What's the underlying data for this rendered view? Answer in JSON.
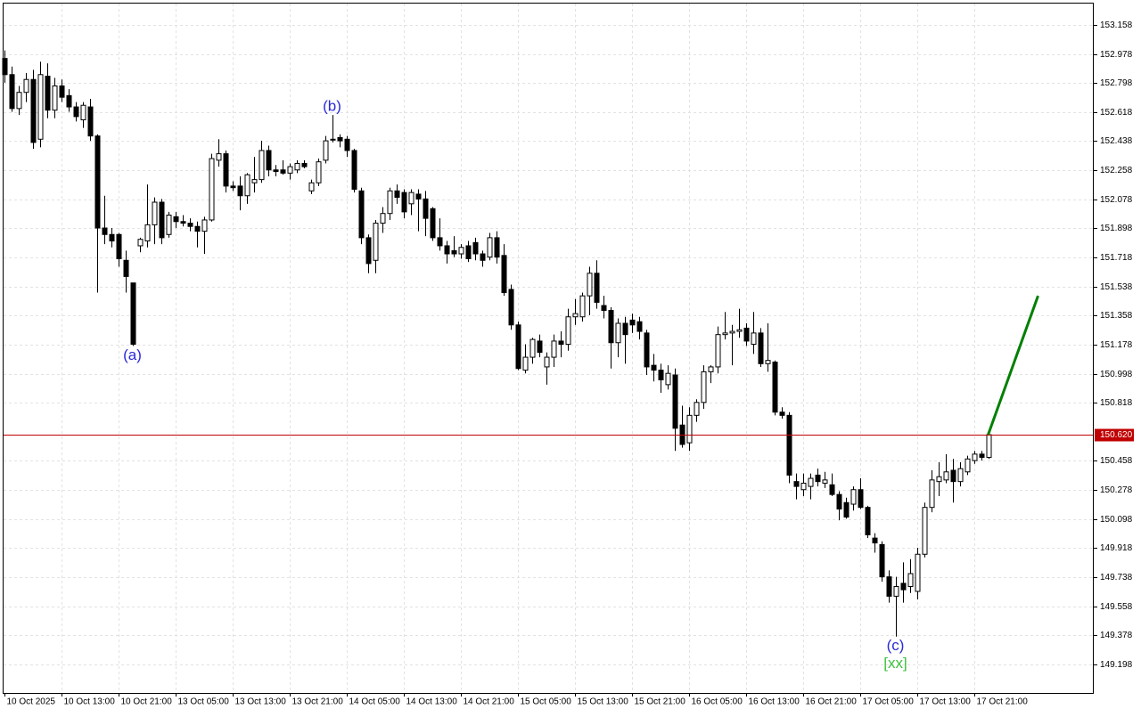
{
  "chart_data": {
    "type": "candlestick",
    "categories": [
      "10 Oct 2025",
      null,
      null,
      null,
      null,
      null,
      null,
      null,
      "10 Oct 13:00",
      null,
      null,
      null,
      null,
      null,
      null,
      null,
      "10 Oct 21:00",
      null,
      null,
      null,
      null,
      null,
      null,
      null,
      "13 Oct 05:00",
      null,
      null,
      null,
      null,
      null,
      null,
      null,
      "13 Oct 13:00",
      null,
      null,
      null,
      null,
      null,
      null,
      null,
      "13 Oct 21:00",
      null,
      null,
      null,
      null,
      null,
      null,
      null,
      "14 Oct 05:00",
      null,
      null,
      null,
      null,
      null,
      null,
      null,
      "14 Oct 13:00",
      null,
      null,
      null,
      null,
      null,
      null,
      null,
      "14 Oct 21:00",
      null,
      null,
      null,
      null,
      null,
      null,
      null,
      "15 Oct 05:00",
      null,
      null,
      null,
      null,
      null,
      null,
      null,
      "15 Oct 13:00",
      null,
      null,
      null,
      null,
      null,
      null,
      null,
      "15 Oct 21:00",
      null,
      null,
      null,
      null,
      null,
      null,
      null,
      "16 Oct 05:00",
      null,
      null,
      null,
      null,
      null,
      null,
      null,
      "16 Oct 13:00",
      null,
      null,
      null,
      null,
      null,
      null,
      null,
      "16 Oct 21:00",
      null,
      null,
      null,
      null,
      null,
      null,
      null,
      "17 Oct 05:00",
      null,
      null,
      null,
      null,
      null,
      null,
      null,
      "17 Oct 13:00",
      null,
      null,
      null,
      null,
      null,
      null,
      null,
      "17 Oct 21:00",
      null,
      null
    ],
    "open": [
      152.95,
      152.85,
      152.64,
      152.74,
      152.82,
      152.45,
      152.84,
      152.63,
      152.78,
      152.72,
      152.65,
      152.57,
      152.65,
      152.47,
      151.9,
      151.86,
      151.86,
      151.7,
      151.56,
      151.79,
      151.82,
      151.92,
      152.06,
      151.86,
      151.97,
      151.94,
      151.93,
      151.91,
      151.88,
      151.95,
      152.32,
      152.36,
      152.16,
      152.16,
      152.1,
      152.18,
      152.2,
      152.38,
      152.26,
      152.26,
      152.24,
      152.26,
      152.3,
      152.13,
      152.18,
      152.32,
      152.45,
      152.46,
      152.45,
      152.38,
      152.13,
      151.84,
      151.7,
      151.93,
      151.99,
      152.13,
      152.12,
      152.05,
      152.11,
      152.08,
      152.02,
      151.84,
      151.79,
      151.76,
      151.74,
      151.79,
      151.81,
      151.74,
      151.72,
      151.84,
      151.73,
      151.52,
      151.3,
      151.02,
      151.1,
      151.2,
      151.04,
      151.1,
      151.2,
      151.18,
      151.35,
      151.35,
      151.48,
      151.62,
      151.42,
      151.39,
      151.19,
      151.31,
      151.33,
      151.32,
      151.25,
      151.05,
      151.02,
      150.93,
      150.99,
      150.68,
      150.57,
      150.74,
      150.82,
      151.01,
      151.04,
      151.24,
      151.25,
      151.26,
      151.28,
      151.18,
      151.25,
      151.06,
      151.07,
      150.76,
      150.74,
      150.33,
      150.28,
      150.3,
      150.37,
      150.32,
      150.31,
      150.25,
      150.2,
      150.19,
      150.28,
      150.17,
      149.98,
      149.94,
      149.74,
      149.62,
      149.7,
      149.68,
      149.65,
      149.88,
      150.17,
      150.33,
      150.34,
      150.4,
      150.33,
      150.39,
      150.46,
      150.5,
      150.48
    ],
    "high": [
      153.0,
      152.9,
      152.78,
      152.86,
      152.88,
      152.93,
      152.92,
      152.83,
      152.82,
      152.76,
      152.68,
      152.68,
      152.7,
      152.48,
      152.1,
      151.9,
      151.87,
      151.76,
      151.56,
      151.84,
      152.17,
      152.09,
      152.08,
      152.0,
      152.0,
      151.98,
      151.96,
      151.94,
      151.97,
      152.36,
      152.45,
      152.38,
      152.19,
      152.22,
      152.24,
      152.34,
      152.44,
      152.41,
      152.29,
      152.32,
      152.3,
      152.32,
      152.32,
      152.2,
      152.33,
      152.47,
      152.6,
      152.48,
      152.47,
      152.39,
      152.15,
      151.86,
      151.95,
      152.03,
      152.15,
      152.17,
      152.14,
      152.14,
      152.14,
      152.13,
      152.03,
      151.96,
      151.82,
      151.85,
      151.8,
      151.82,
      151.84,
      151.76,
      151.87,
      151.88,
      151.8,
      151.55,
      151.32,
      151.18,
      151.22,
      151.24,
      151.13,
      151.24,
      151.26,
      151.4,
      151.46,
      151.5,
      151.66,
      151.7,
      151.48,
      151.41,
      151.34,
      151.35,
      151.37,
      151.35,
      151.27,
      151.12,
      151.06,
      151.05,
      151.03,
      150.8,
      150.79,
      150.84,
      151.05,
      151.05,
      151.29,
      151.38,
      151.3,
      151.4,
      151.31,
      151.38,
      151.28,
      151.31,
      151.08,
      150.79,
      150.76,
      150.38,
      150.38,
      150.38,
      150.41,
      150.39,
      150.38,
      150.27,
      150.23,
      150.3,
      150.35,
      150.18,
      150.01,
      149.96,
      149.78,
      149.74,
      149.83,
      149.85,
      149.92,
      150.2,
      150.4,
      150.45,
      150.5,
      150.47,
      150.45,
      150.49,
      150.52,
      150.52,
      150.65
    ],
    "low": [
      152.8,
      152.62,
      152.6,
      152.68,
      152.39,
      152.4,
      152.58,
      152.58,
      152.68,
      152.62,
      152.56,
      152.52,
      152.44,
      151.5,
      151.8,
      151.78,
      151.66,
      151.5,
      151.17,
      151.75,
      151.78,
      151.8,
      151.8,
      151.84,
      151.9,
      151.91,
      151.88,
      151.78,
      151.74,
      151.94,
      152.28,
      152.12,
      152.13,
      152.01,
      152.05,
      152.12,
      152.18,
      152.22,
      152.22,
      152.23,
      152.2,
      152.24,
      152.27,
      152.11,
      152.16,
      152.3,
      152.43,
      152.4,
      152.34,
      152.12,
      151.8,
      151.62,
      151.62,
      151.87,
      151.95,
      152.05,
      151.96,
      151.98,
      151.88,
      151.85,
      151.82,
      151.76,
      151.68,
      151.72,
      151.71,
      151.69,
      151.7,
      151.66,
      151.7,
      151.68,
      151.48,
      151.27,
      151.02,
      151.0,
      151.06,
      151.1,
      150.93,
      151.04,
      151.1,
      151.14,
      151.3,
      151.32,
      151.36,
      151.4,
      151.34,
      151.03,
      151.1,
      151.06,
      151.25,
      151.21,
      150.99,
      150.95,
      150.88,
      150.9,
      150.52,
      150.54,
      150.52,
      150.7,
      150.78,
      150.94,
      151.0,
      151.21,
      151.05,
      151.22,
      151.17,
      151.12,
      151.04,
      151.01,
      150.74,
      150.72,
      150.32,
      150.22,
      150.24,
      150.22,
      150.3,
      150.29,
      150.24,
      150.09,
      150.1,
      150.15,
      150.16,
      149.98,
      149.89,
      149.71,
      149.58,
      149.37,
      149.58,
      149.64,
      149.6,
      149.86,
      150.14,
      150.24,
      150.32,
      150.2,
      150.3,
      150.37,
      150.44,
      150.46,
      150.47
    ],
    "close": [
      152.85,
      152.64,
      152.74,
      152.82,
      152.43,
      152.85,
      152.63,
      152.78,
      152.71,
      152.65,
      152.59,
      152.66,
      152.47,
      151.9,
      151.86,
      151.82,
      151.71,
      151.6,
      151.18,
      151.83,
      151.92,
      152.06,
      151.84,
      151.98,
      151.94,
      151.93,
      151.91,
      151.88,
      151.95,
      152.33,
      152.36,
      152.16,
      152.15,
      152.1,
      152.23,
      152.2,
      152.38,
      152.26,
      152.25,
      152.24,
      152.28,
      152.3,
      152.28,
      152.18,
      152.31,
      152.44,
      152.45,
      152.44,
      152.38,
      152.14,
      151.84,
      151.68,
      151.93,
      151.99,
      152.13,
      152.09,
      152.0,
      152.12,
      152.08,
      151.96,
      151.84,
      151.79,
      151.74,
      151.74,
      151.78,
      151.71,
      151.74,
      151.7,
      151.84,
      151.72,
      151.5,
      151.3,
      151.03,
      151.1,
      151.21,
      151.13,
      151.1,
      151.2,
      151.18,
      151.35,
      151.37,
      151.48,
      151.62,
      151.44,
      151.39,
      151.19,
      151.31,
      151.24,
      151.3,
      151.26,
      151.04,
      151.02,
      150.96,
      151.0,
      150.66,
      150.56,
      150.74,
      150.82,
      151.01,
      151.04,
      151.24,
      151.25,
      151.26,
      151.27,
      151.2,
      151.25,
      151.06,
      151.08,
      150.76,
      150.74,
      150.37,
      150.3,
      150.32,
      150.35,
      150.33,
      150.34,
      150.25,
      150.16,
      150.11,
      150.28,
      150.17,
      150.0,
      149.95,
      149.74,
      149.62,
      149.68,
      149.66,
      149.76,
      149.88,
      150.17,
      150.34,
      150.36,
      150.39,
      150.33,
      150.41,
      150.47,
      150.5,
      150.48,
      150.62
    ],
    "up_color": "#ffffff",
    "down_color": "#000000",
    "ylim": [
      149.021,
      153.29
    ],
    "yticks": [
      153.158,
      152.978,
      152.798,
      152.618,
      152.438,
      152.258,
      152.078,
      151.898,
      151.718,
      151.538,
      151.358,
      151.178,
      150.998,
      150.818,
      150.458,
      150.278,
      150.098,
      149.918,
      149.738,
      149.558,
      149.378,
      149.198
    ],
    "grid": true,
    "current_price": {
      "value": 150.62,
      "label": "150.620",
      "color": "#c00000"
    },
    "forecast": {
      "values": [
        150.62,
        151.48
      ],
      "color": "#008000"
    },
    "wave_labels": [
      {
        "text": "(a)",
        "at": 18,
        "position": "below",
        "color": "#2a2ad8"
      },
      {
        "text": "(b)",
        "at": 46,
        "position": "above",
        "color": "#2a2ad8"
      },
      {
        "text": "(c)",
        "at": 125,
        "position": "below",
        "color": "#2a2ad8"
      },
      {
        "text": "[xx]",
        "at": 125,
        "position": "below",
        "color": "#3cc03c"
      }
    ]
  }
}
